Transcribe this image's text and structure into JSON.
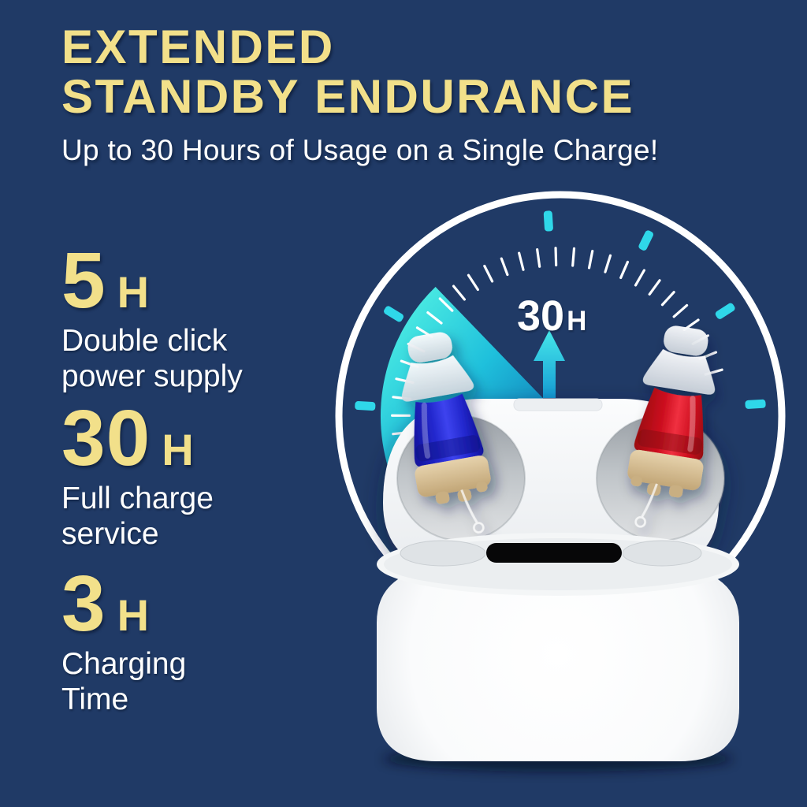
{
  "colors": {
    "navy-bg": "#203A66",
    "headline-yellow": "#F2E08A",
    "text-white": "#FFFFFF",
    "accent-cyan": "#2FD7E9",
    "wedge-aqua": "#3FE6DE",
    "wedge-deep": "#0C6DB2",
    "ring-white": "#FFFFFF",
    "earbud-blue": "#2328CE",
    "earbud-red": "#CE1020",
    "earbud-base-tan": "#D5BE94",
    "case-white": "#FFFFFF"
  },
  "header": {
    "title_line1": "EXTENDED",
    "title_line2": "STANDBY ENDURANCE",
    "subtitle": "Up to 30 Hours of Usage on a Single Charge!"
  },
  "stats": [
    {
      "value": "5",
      "unit": "H",
      "label_line1": "Double click",
      "label_line2": "power supply"
    },
    {
      "value": "30",
      "unit": "H",
      "label_line1": "Full charge",
      "label_line2": "service"
    },
    {
      "value": "3",
      "unit": "H",
      "label_line1": "Charging",
      "label_line2": "Time"
    }
  ],
  "gauge": {
    "label_value": "30",
    "label_unit": "H"
  }
}
